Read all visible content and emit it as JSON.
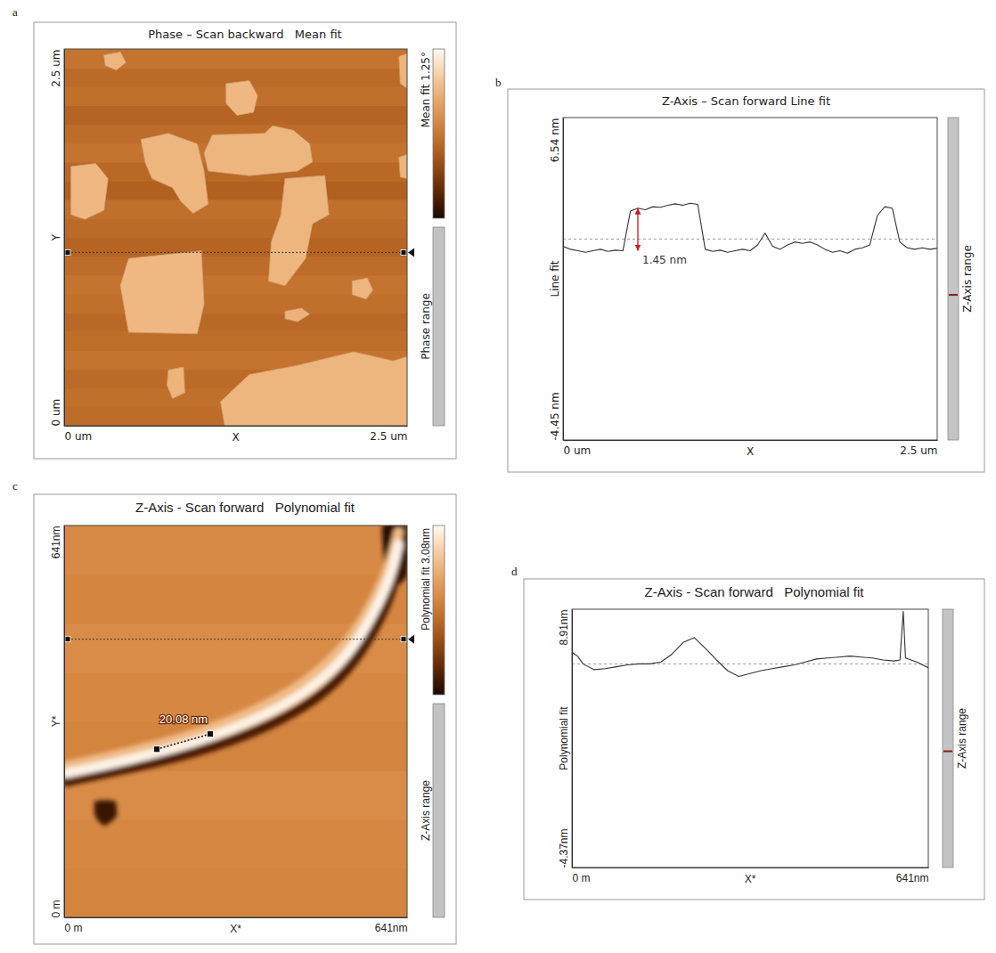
{
  "chart_data": [
    {
      "type": "image",
      "panel": "a",
      "title": "Phase – Scan backward   Mean fit",
      "x_label": "X",
      "y_label": "Y",
      "xlim": [
        0,
        2.5
      ],
      "ylim": [
        0,
        2.5
      ],
      "xticks": [
        {
          "value": 0,
          "label": "0 um"
        },
        {
          "value": 2.5,
          "label": "2.5 um"
        }
      ],
      "yticks": [
        {
          "value": 0,
          "label": "0 um"
        },
        {
          "value": 2.5,
          "label": "2.5 um"
        }
      ],
      "colorbar": {
        "label": "Mean fit 1.25°",
        "range_label": "Phase range",
        "clim": [
          0,
          1.25
        ]
      },
      "background_rows": [
        0.56,
        0.58,
        0.55,
        0.6,
        0.57,
        0.54,
        0.58,
        0.6,
        0.56,
        0.52,
        0.55,
        0.58,
        0.5,
        0.54,
        0.6,
        0.56,
        0.52,
        0.58,
        0.55,
        0.6
      ],
      "flakes": [
        {
          "value": 0.95,
          "points": [
            [
              0.29,
              2.46
            ],
            [
              0.41,
              2.48
            ],
            [
              0.45,
              2.41
            ],
            [
              0.38,
              2.36
            ],
            [
              0.3,
              2.39
            ]
          ]
        },
        {
          "value": 0.96,
          "points": [
            [
              1.18,
              2.27
            ],
            [
              1.35,
              2.29
            ],
            [
              1.41,
              2.19
            ],
            [
              1.38,
              2.08
            ],
            [
              1.26,
              2.06
            ],
            [
              1.18,
              2.14
            ]
          ]
        },
        {
          "value": 0.94,
          "points": [
            [
              2.44,
              2.45
            ],
            [
              2.5,
              2.47
            ],
            [
              2.5,
              2.24
            ],
            [
              2.45,
              2.27
            ]
          ]
        },
        {
          "value": 0.95,
          "points": [
            [
              0.56,
              1.9
            ],
            [
              0.76,
              1.94
            ],
            [
              0.97,
              1.87
            ],
            [
              1.02,
              1.69
            ],
            [
              1.05,
              1.47
            ],
            [
              0.94,
              1.41
            ],
            [
              0.85,
              1.49
            ],
            [
              0.79,
              1.58
            ],
            [
              0.64,
              1.64
            ],
            [
              0.59,
              1.75
            ]
          ]
        },
        {
          "value": 0.95,
          "points": [
            [
              1.08,
              1.93
            ],
            [
              1.46,
              1.94
            ],
            [
              1.52,
              1.99
            ],
            [
              1.67,
              1.96
            ],
            [
              1.79,
              1.87
            ],
            [
              1.81,
              1.75
            ],
            [
              1.7,
              1.69
            ],
            [
              1.35,
              1.66
            ],
            [
              1.05,
              1.69
            ],
            [
              1.02,
              1.81
            ]
          ]
        },
        {
          "value": 0.96,
          "points": [
            [
              0.05,
              1.72
            ],
            [
              0.23,
              1.74
            ],
            [
              0.32,
              1.64
            ],
            [
              0.29,
              1.43
            ],
            [
              0.15,
              1.37
            ],
            [
              0.05,
              1.4
            ]
          ]
        },
        {
          "value": 0.95,
          "points": [
            [
              1.61,
              1.64
            ],
            [
              1.9,
              1.66
            ],
            [
              1.93,
              1.4
            ],
            [
              1.81,
              1.34
            ],
            [
              1.76,
              1.11
            ],
            [
              1.61,
              0.93
            ],
            [
              1.49,
              0.96
            ],
            [
              1.51,
              1.22
            ],
            [
              1.58,
              1.4
            ]
          ]
        },
        {
          "value": 0.94,
          "points": [
            [
              2.44,
              1.78
            ],
            [
              2.5,
              1.8
            ],
            [
              2.5,
              1.64
            ],
            [
              2.45,
              1.65
            ]
          ]
        },
        {
          "value": 0.96,
          "points": [
            [
              0.47,
              1.11
            ],
            [
              1.0,
              1.16
            ],
            [
              1.02,
              0.81
            ],
            [
              0.97,
              0.61
            ],
            [
              0.47,
              0.62
            ],
            [
              0.41,
              0.93
            ]
          ]
        },
        {
          "value": 0.95,
          "points": [
            [
              2.1,
              0.96
            ],
            [
              2.21,
              0.98
            ],
            [
              2.25,
              0.9
            ],
            [
              2.2,
              0.84
            ],
            [
              2.1,
              0.87
            ]
          ]
        },
        {
          "value": 0.93,
          "points": [
            [
              1.61,
              0.76
            ],
            [
              1.73,
              0.78
            ],
            [
              1.79,
              0.74
            ],
            [
              1.7,
              0.69
            ],
            [
              1.61,
              0.71
            ]
          ]
        },
        {
          "value": 0.94,
          "points": [
            [
              0.76,
              0.37
            ],
            [
              0.87,
              0.39
            ],
            [
              0.88,
              0.22
            ],
            [
              0.79,
              0.18
            ],
            [
              0.75,
              0.27
            ]
          ]
        },
        {
          "value": 0.95,
          "points": [
            [
              1.17,
              0
            ],
            [
              1.14,
              0.16
            ],
            [
              1.35,
              0.34
            ],
            [
              1.7,
              0.4
            ],
            [
              2.11,
              0.49
            ],
            [
              2.4,
              0.43
            ],
            [
              2.5,
              0.46
            ],
            [
              2.5,
              0
            ]
          ]
        }
      ],
      "profile_y": 1.15
    },
    {
      "type": "line",
      "panel": "b",
      "title": "Z-Axis – Scan forward Line fit",
      "x_label": "X",
      "y_label": "Line fit",
      "range_label": "Z-Axis range",
      "xlim": [
        0,
        2.5
      ],
      "ylim": [
        -4.45,
        6.54
      ],
      "xticks": [
        {
          "value": 0,
          "label": "0 um"
        },
        {
          "value": 2.5,
          "label": "2.5 um"
        }
      ],
      "yticks": [
        {
          "value": 6.54,
          "label": "6.54 nm"
        },
        {
          "value": -4.45,
          "label": "-4.45 nm"
        }
      ],
      "x": [
        0,
        0.05,
        0.1,
        0.15,
        0.2,
        0.25,
        0.3,
        0.35,
        0.4,
        0.45,
        0.5,
        0.55,
        0.6,
        0.65,
        0.7,
        0.75,
        0.8,
        0.85,
        0.9,
        0.95,
        1,
        1.05,
        1.1,
        1.15,
        1.2,
        1.25,
        1.3,
        1.35,
        1.4,
        1.45,
        1.5,
        1.55,
        1.6,
        1.65,
        1.7,
        1.75,
        1.8,
        1.85,
        1.9,
        1.95,
        2,
        2.05,
        2.1,
        2.15,
        2.2,
        2.25,
        2.3,
        2.35,
        2.4,
        2.45,
        2.5
      ],
      "values": [
        2.15,
        2.05,
        2.0,
        1.95,
        2.0,
        2.05,
        1.98,
        2.02,
        2.0,
        3.35,
        3.45,
        3.4,
        3.5,
        3.48,
        3.55,
        3.6,
        3.55,
        3.62,
        3.58,
        2.05,
        1.98,
        2.02,
        1.95,
        2.0,
        2.05,
        2.0,
        2.2,
        2.6,
        2.15,
        2.05,
        2.2,
        2.3,
        2.25,
        2.3,
        2.2,
        2.05,
        1.95,
        2.0,
        1.92,
        2.05,
        2.1,
        2.2,
        3.2,
        3.5,
        3.45,
        2.3,
        2.1,
        2.05,
        2.1,
        2.05,
        2.08
      ],
      "reference_line": 2.4,
      "annotation": {
        "text": "1.45 nm",
        "x": 0.5,
        "y": [
          2.0,
          3.45
        ]
      }
    },
    {
      "type": "image",
      "panel": "c",
      "title": "Z-Axis - Scan forward   Polynomial fit",
      "x_label": "X*",
      "y_label": "Y*",
      "xlim": [
        0,
        641
      ],
      "ylim": [
        0,
        641
      ],
      "xticks": [
        {
          "value": 0,
          "label": "0 m"
        },
        {
          "value": 641,
          "label": "641nm"
        }
      ],
      "yticks": [
        {
          "value": 0,
          "label": "0 m"
        },
        {
          "value": 641,
          "label": "641nm"
        }
      ],
      "colorbar": {
        "label": "Polynomial fit 3.08nm",
        "range_label": "Z-Axis range",
        "clim": [
          0,
          3.08
        ]
      },
      "background_rows": [
        1.7,
        1.75,
        1.8,
        1.7,
        1.75,
        1.8,
        1.72,
        1.78
      ],
      "ridges": [
        {
          "value": 2.4,
          "points": [
            [
              5,
              248
            ],
            [
              120,
              270
            ],
            [
              242,
              298
            ],
            [
              350,
              334
            ],
            [
              457,
              385
            ],
            [
              534,
              450
            ],
            [
              580,
              520
            ],
            [
              610,
              578
            ],
            [
              625,
              630
            ]
          ]
        },
        {
          "value": 0.35,
          "points": [
            [
              5,
              222
            ],
            [
              120,
              243
            ],
            [
              242,
              268
            ],
            [
              350,
              300
            ],
            [
              457,
              345
            ],
            [
              534,
              405
            ],
            [
              580,
              470
            ],
            [
              610,
              525
            ],
            [
              625,
              580
            ]
          ]
        },
        {
          "value": 3.0,
          "points": [
            [
              5,
              236
            ],
            [
              120,
              257
            ],
            [
              242,
              285
            ],
            [
              350,
              319
            ],
            [
              457,
              368
            ],
            [
              534,
              430
            ],
            [
              580,
              499
            ],
            [
              610,
              555
            ],
            [
              625,
              610
            ]
          ]
        }
      ],
      "pits": [
        {
          "value": 0.1,
          "points": [
            [
              595,
              641
            ],
            [
              641,
              641
            ],
            [
              641,
              560
            ],
            [
              615,
              540
            ],
            [
              600,
              575
            ]
          ]
        },
        {
          "value": 0.2,
          "points": [
            [
              58,
              190
            ],
            [
              95,
              190
            ],
            [
              98,
              165
            ],
            [
              75,
              150
            ],
            [
              58,
              165
            ]
          ]
        }
      ],
      "measurement": {
        "text": "20.08 nm",
        "points": [
          [
            173,
            275
          ],
          [
            273,
            300
          ]
        ]
      },
      "profile_y": 455
    },
    {
      "type": "line",
      "panel": "d",
      "title": "Z-Axis - Scan forward   Polynomial fit",
      "x_label": "X*",
      "y_label": "Polynomial fit",
      "range_label": "Z-Axis range",
      "xlim": [
        0,
        641
      ],
      "ylim": [
        -4.37,
        8.91
      ],
      "xticks": [
        {
          "value": 0,
          "label": "0 m"
        },
        {
          "value": 641,
          "label": "641nm"
        }
      ],
      "yticks": [
        {
          "value": 8.91,
          "label": "8.91nm"
        },
        {
          "value": -4.37,
          "label": "-4.37nm"
        }
      ],
      "x": [
        0,
        10,
        20,
        40,
        60,
        80,
        100,
        120,
        140,
        160,
        180,
        200,
        220,
        240,
        260,
        280,
        300,
        320,
        340,
        360,
        380,
        400,
        420,
        440,
        460,
        480,
        500,
        520,
        540,
        560,
        580,
        590,
        596,
        600,
        620,
        641
      ],
      "values": [
        6.7,
        6.5,
        6.1,
        5.8,
        5.85,
        5.95,
        6.05,
        6.1,
        6.1,
        6.2,
        6.6,
        7.2,
        7.45,
        6.9,
        6.3,
        5.75,
        5.45,
        5.6,
        5.75,
        5.85,
        5.95,
        6.05,
        6.2,
        6.35,
        6.4,
        6.45,
        6.5,
        6.45,
        6.4,
        6.3,
        6.25,
        6.3,
        8.8,
        6.4,
        6.2,
        5.9
      ],
      "reference_line": 6.1
    }
  ]
}
